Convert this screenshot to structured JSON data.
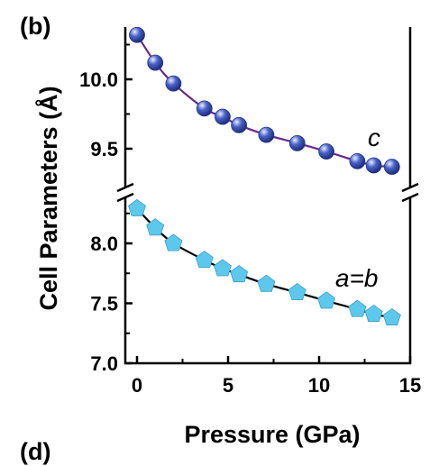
{
  "panel_labels": [
    "(b)",
    "(d)"
  ],
  "chart_data": {
    "type": "scatter",
    "title": "",
    "xlabel": "Pressure (GPa)",
    "ylabel": "Cell Parameters (Å)",
    "xlim": [
      0,
      15
    ],
    "xticks": [
      0,
      5,
      10,
      15
    ],
    "ylim": [
      7.0,
      10.35
    ],
    "y_axis_break": [
      8.4,
      9.25
    ],
    "yticks": [
      "7.0",
      "7.5",
      "8.0",
      "9.5",
      "10.0"
    ],
    "grid": false,
    "legend": "none",
    "series": [
      {
        "name": "c",
        "color": "#4a63c8",
        "line_color": "#6a2a8c",
        "marker": "sphere",
        "x": [
          0,
          1,
          2,
          3.7,
          4.7,
          5.6,
          7.1,
          8.8,
          10.4,
          12.1,
          13,
          14
        ],
        "y": [
          10.32,
          10.12,
          9.97,
          9.79,
          9.73,
          9.67,
          9.6,
          9.54,
          9.48,
          9.41,
          9.38,
          9.37
        ]
      },
      {
        "name": "a=b",
        "color": "#5ec8ec",
        "line_color": "#000000",
        "marker": "pentagon",
        "x": [
          0,
          1,
          2,
          3.7,
          4.7,
          5.6,
          7.1,
          8.8,
          10.4,
          12.1,
          13,
          14
        ],
        "y": [
          8.29,
          8.13,
          8.0,
          7.86,
          7.79,
          7.74,
          7.66,
          7.59,
          7.52,
          7.45,
          7.41,
          7.38
        ]
      }
    ]
  }
}
